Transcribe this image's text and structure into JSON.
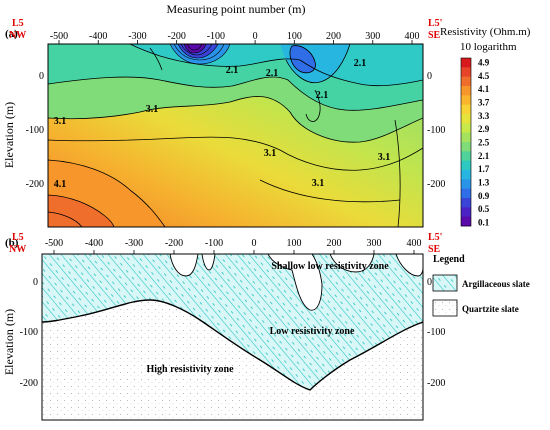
{
  "panel_a": {
    "label": "(a)",
    "top_axis_title": "Measuring point number (m)",
    "x_ticks": [
      "-500",
      "-400",
      "-300",
      "-200",
      "-100",
      "0",
      "100",
      "200",
      "300",
      "400"
    ],
    "left_marker": {
      "line1": "L5",
      "line2": "NW"
    },
    "right_marker": {
      "line1": "L5'",
      "line2": "SE"
    },
    "y_axis_title": "Elevation (m)",
    "y_ticks_left": [
      "0",
      "-100",
      "-200"
    ],
    "y_ticks_right": [
      "0",
      "-100",
      "-200"
    ],
    "contour_labels": [
      "2.1",
      "2.1",
      "2.1",
      "2.1",
      "3.1",
      "3.1",
      "3.1",
      "3.1",
      "3.1",
      "4.1"
    ],
    "colorbar": {
      "title": "Resistivity (Ohm.m)",
      "subtitle": "10 logarithm",
      "ticks": [
        "4.9",
        "4.5",
        "4.1",
        "3.7",
        "3.3",
        "2.9",
        "2.5",
        "2.1",
        "1.7",
        "1.3",
        "0.9",
        "0.5",
        "0.1"
      ],
      "colors": [
        "#d7191c",
        "#e8442a",
        "#f06e2c",
        "#f6962b",
        "#f9b52e",
        "#f7d336",
        "#e6e33c",
        "#c9e84a",
        "#a5e35e",
        "#7fdc78",
        "#4fd39a",
        "#2dc9c0",
        "#27b6df",
        "#2a95e8",
        "#2f6ee6",
        "#3a45d8",
        "#4b23c4",
        "#5a0aa8"
      ]
    }
  },
  "panel_b": {
    "label": "(b)",
    "x_ticks": [
      "-500",
      "-400",
      "-300",
      "-200",
      "-100",
      "0",
      "100",
      "200",
      "300",
      "400"
    ],
    "left_marker": {
      "line1": "L5",
      "line2": "NW"
    },
    "right_marker": {
      "line1": "L5'",
      "line2": "SE"
    },
    "y_axis_title": "Elevation (m)",
    "y_ticks_left": [
      "0",
      "-100",
      "-200"
    ],
    "y_ticks_right": [
      "0",
      "-100",
      "-200"
    ],
    "zones": {
      "shallow": "Shallow low resistivity zone",
      "low": "Low resistivity zone",
      "high": "High resistivity zone"
    },
    "legend": {
      "title": "Legend",
      "items": [
        "Argillaceous slate",
        "Quartzite slate"
      ]
    }
  }
}
